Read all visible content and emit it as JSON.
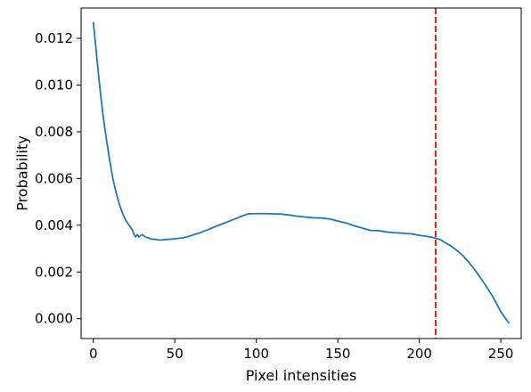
{
  "chart_data": {
    "type": "line",
    "title": "",
    "xlabel": "Pixel intensities",
    "ylabel": "Probability",
    "xlim": [
      -7.5,
      262.5
    ],
    "ylim": [
      -0.00085,
      0.0133
    ],
    "xticks": [
      0,
      50,
      100,
      150,
      200,
      250
    ],
    "xtick_labels": [
      "0",
      "50",
      "100",
      "150",
      "200",
      "250"
    ],
    "yticks": [
      0.0,
      0.002,
      0.004,
      0.006,
      0.008,
      0.01,
      0.012
    ],
    "ytick_labels": [
      "0.000",
      "0.002",
      "0.004",
      "0.006",
      "0.008",
      "0.010",
      "0.012"
    ],
    "grid": false,
    "legend": false,
    "series": [
      {
        "color": "#1f77b4",
        "x": [
          0,
          2,
          4,
          6,
          8,
          10,
          12,
          14,
          16,
          18,
          20,
          22,
          24,
          25,
          26,
          27,
          28,
          30,
          32,
          34,
          36,
          38,
          40,
          42,
          45,
          50,
          55,
          58,
          60,
          65,
          70,
          75,
          80,
          85,
          90,
          95,
          100,
          105,
          110,
          115,
          120,
          125,
          130,
          135,
          140,
          145,
          150,
          155,
          160,
          165,
          170,
          175,
          180,
          185,
          190,
          195,
          200,
          205,
          210,
          213,
          216,
          219,
          222,
          226,
          230,
          235,
          240,
          245,
          250,
          255
        ],
        "y": [
          0.0127,
          0.0113,
          0.0099,
          0.0087,
          0.0077,
          0.0068,
          0.006,
          0.0054,
          0.0049,
          0.0045,
          0.0042,
          0.004,
          0.0038,
          0.0036,
          0.0035,
          0.0036,
          0.0035,
          0.0036,
          0.0035,
          0.00345,
          0.0034,
          0.0034,
          0.00337,
          0.00337,
          0.00339,
          0.00342,
          0.00346,
          0.00351,
          0.00356,
          0.00367,
          0.0038,
          0.00395,
          0.00408,
          0.00422,
          0.00436,
          0.00449,
          0.0045,
          0.0045,
          0.00449,
          0.00448,
          0.00444,
          0.00439,
          0.00435,
          0.00432,
          0.00431,
          0.00427,
          0.00418,
          0.0041,
          0.00398,
          0.00388,
          0.00378,
          0.00377,
          0.00371,
          0.00368,
          0.00366,
          0.00363,
          0.00357,
          0.00352,
          0.00345,
          0.00338,
          0.00325,
          0.00313,
          0.00298,
          0.00275,
          0.00245,
          0.002,
          0.0015,
          0.00095,
          0.0003,
          -0.0002
        ]
      }
    ],
    "reference_lines": [
      {
        "orientation": "vertical",
        "x": 210,
        "color": "#ff0000",
        "style": "dashed"
      }
    ]
  }
}
